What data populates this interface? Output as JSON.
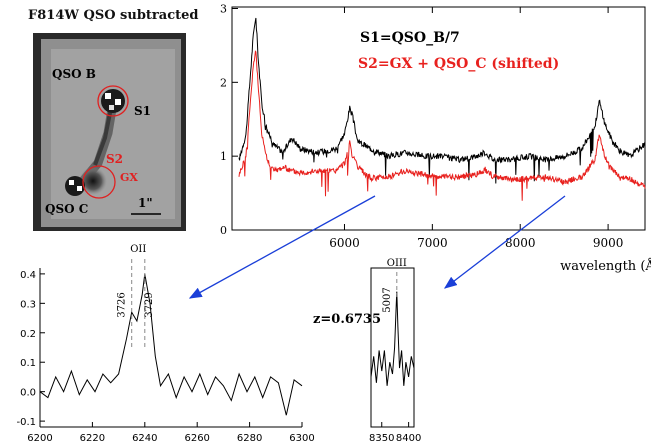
{
  "image_panel": {
    "title": "F814W QSO subtracted",
    "labels": {
      "qso_b": "QSO B",
      "s1": "S1",
      "s2": "S2",
      "gx": "GX",
      "qso_c": "QSO C",
      "scale": "1\""
    },
    "colors": {
      "circle": "#e02020",
      "label_red": "#e02020"
    }
  },
  "annotation": {
    "redshift": "z=0.6735"
  },
  "chart_data": [
    {
      "type": "line",
      "panel": "main-spectrum",
      "title": "",
      "xlabel": "wavelength (Å)",
      "ylabel": "",
      "xlim": [
        4720,
        9420
      ],
      "ylim": [
        0,
        3.02
      ],
      "xticks": [
        6000,
        7000,
        8000,
        9000
      ],
      "yticks": [
        0,
        1,
        2,
        3
      ],
      "legend": [
        {
          "text": "S1=QSO_B/7",
          "color": "#000000"
        },
        {
          "text": "S2=GX + QSO_C (shifted)",
          "color": "#e8211e"
        }
      ],
      "series": [
        {
          "name": "S1=QSO_B/7",
          "color": "#000000",
          "x": [
            4800,
            4880,
            4960,
            4990,
            5020,
            5060,
            5120,
            5200,
            5300,
            5400,
            5500,
            5700,
            5900,
            6000,
            6060,
            6090,
            6150,
            6300,
            6500,
            6700,
            6900,
            7100,
            7300,
            7500,
            7600,
            7700,
            7900,
            8100,
            8300,
            8500,
            8700,
            8850,
            8900,
            8960,
            9050,
            9150,
            9250,
            9350,
            9400
          ],
          "y": [
            0.95,
            1.3,
            2.6,
            2.9,
            2.3,
            1.7,
            1.35,
            1.15,
            1.05,
            1.25,
            1.1,
            1.05,
            1.1,
            1.3,
            1.65,
            1.55,
            1.2,
            1.1,
            1.0,
            1.05,
            1.0,
            1.0,
            0.95,
            1.0,
            1.05,
            0.95,
            0.95,
            1.0,
            0.95,
            1.0,
            1.1,
            1.4,
            1.75,
            1.45,
            1.2,
            1.05,
            1.0,
            1.1,
            1.15
          ]
        },
        {
          "name": "S2=GX + QSO_C (shifted)",
          "color": "#e8211e",
          "x": [
            4800,
            4880,
            4960,
            4990,
            5020,
            5060,
            5120,
            5200,
            5300,
            5400,
            5500,
            5700,
            5900,
            6000,
            6060,
            6090,
            6150,
            6300,
            6500,
            6700,
            6900,
            7100,
            7300,
            7500,
            7600,
            7700,
            7900,
            8100,
            8300,
            8500,
            8700,
            8850,
            8900,
            8960,
            9050,
            9150,
            9250,
            9350,
            9400
          ],
          "y": [
            0.75,
            1.0,
            2.2,
            2.45,
            1.9,
            1.3,
            0.95,
            0.8,
            0.85,
            0.8,
            0.78,
            0.8,
            0.8,
            0.9,
            1.2,
            1.0,
            0.85,
            0.7,
            0.72,
            0.8,
            0.75,
            0.72,
            0.72,
            0.75,
            0.82,
            0.72,
            0.68,
            0.7,
            0.72,
            0.65,
            0.72,
            0.95,
            1.3,
            1.0,
            0.8,
            0.72,
            0.7,
            0.62,
            0.6
          ]
        }
      ]
    },
    {
      "type": "line",
      "panel": "oii-zoom",
      "title": "OII",
      "xlabel": "",
      "ylabel": "",
      "xlim": [
        6200,
        6300
      ],
      "ylim": [
        -0.12,
        0.42
      ],
      "xticks": [
        6200,
        6220,
        6240,
        6260,
        6280,
        6300
      ],
      "yticks": [
        -0.1,
        0.0,
        0.1,
        0.2,
        0.3,
        0.4
      ],
      "line_markers": [
        {
          "label": "3726",
          "x": 6235
        },
        {
          "label": "3729",
          "x": 6240
        }
      ],
      "series": [
        {
          "name": "",
          "color": "#000000",
          "x": [
            6200,
            6203,
            6206,
            6209,
            6212,
            6215,
            6218,
            6221,
            6224,
            6227,
            6230,
            6233,
            6235,
            6237,
            6239,
            6240,
            6242,
            6244,
            6246,
            6249,
            6252,
            6255,
            6258,
            6261,
            6264,
            6267,
            6270,
            6273,
            6276,
            6279,
            6282,
            6285,
            6288,
            6291,
            6294,
            6297,
            6300
          ],
          "y": [
            0.0,
            -0.02,
            0.05,
            0.0,
            0.07,
            -0.01,
            0.04,
            0.0,
            0.06,
            0.03,
            0.06,
            0.18,
            0.27,
            0.24,
            0.33,
            0.4,
            0.3,
            0.12,
            0.02,
            0.06,
            -0.02,
            0.05,
            0.0,
            0.06,
            -0.01,
            0.05,
            0.02,
            -0.03,
            0.06,
            0.0,
            0.05,
            -0.02,
            0.05,
            0.03,
            -0.08,
            0.04,
            0.02
          ]
        }
      ]
    },
    {
      "type": "line",
      "panel": "oiii-zoom",
      "title": "OIII",
      "xlabel": "",
      "ylabel": "",
      "xlim": [
        8330,
        8410
      ],
      "ylim": [
        -0.12,
        0.42
      ],
      "xticks": [
        8350,
        8400
      ],
      "line_markers": [
        {
          "label": "5007",
          "x": 8378
        }
      ],
      "series": [
        {
          "name": "",
          "color": "#000000",
          "x": [
            8330,
            8335,
            8340,
            8345,
            8350,
            8355,
            8360,
            8365,
            8370,
            8374,
            8377,
            8378,
            8380,
            8383,
            8387,
            8391,
            8395,
            8400,
            8405,
            8410
          ],
          "y": [
            0.05,
            0.12,
            0.03,
            0.14,
            0.07,
            0.14,
            0.02,
            0.1,
            0.06,
            0.15,
            0.3,
            0.34,
            0.22,
            0.08,
            0.14,
            0.02,
            0.1,
            0.05,
            0.12,
            0.08
          ]
        }
      ]
    }
  ]
}
